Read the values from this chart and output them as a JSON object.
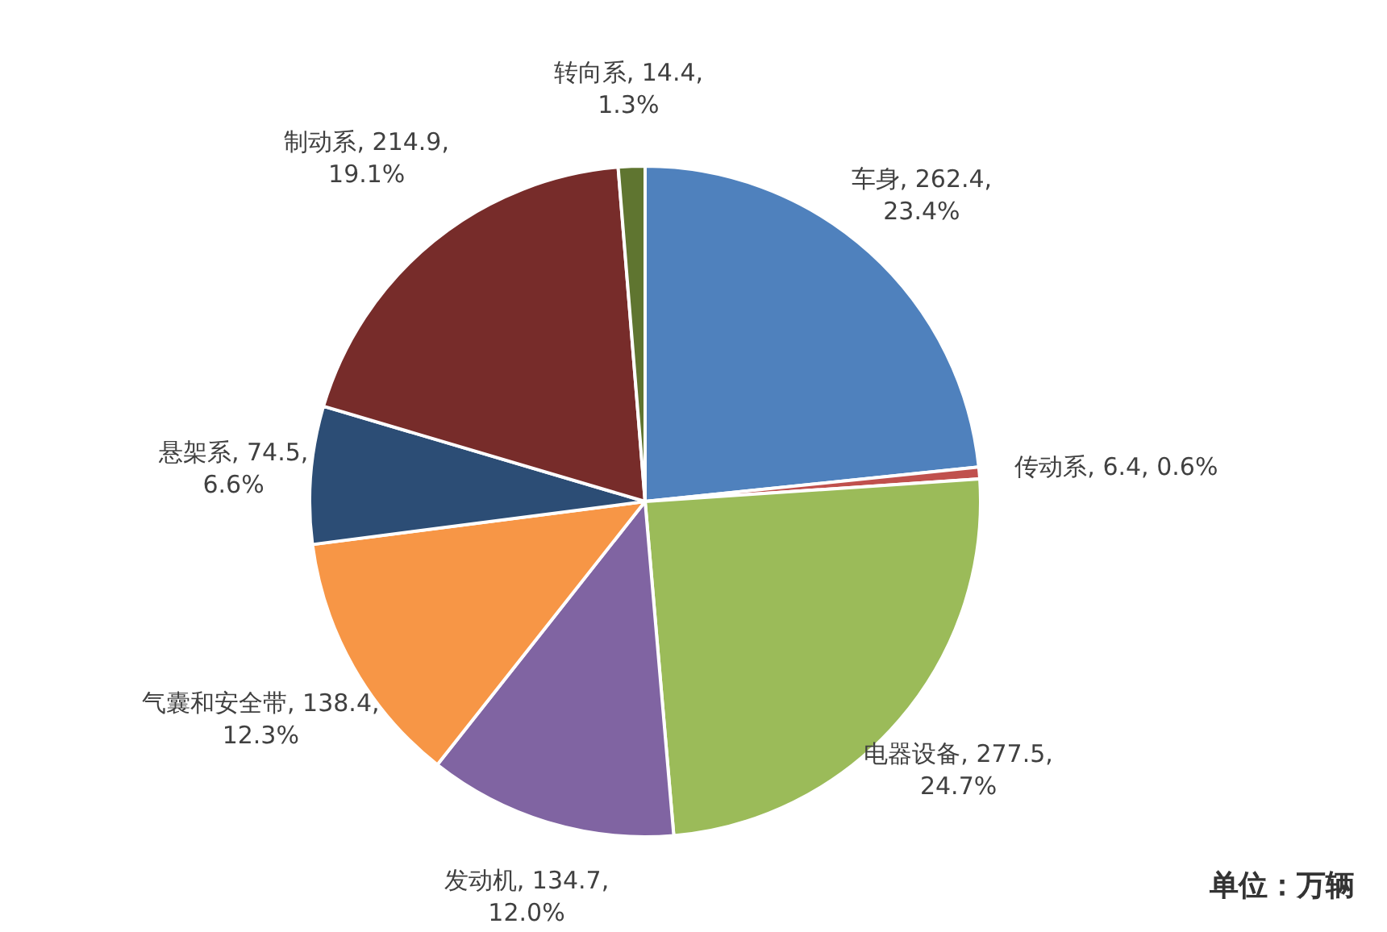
{
  "chart_data": {
    "type": "pie",
    "categories": [
      "车身",
      "传动系",
      "电器设备",
      "发动机",
      "气囊和安全带",
      "悬架系",
      "制动系",
      "转向系"
    ],
    "values": [
      262.4,
      6.4,
      277.5,
      134.7,
      138.4,
      74.5,
      214.9,
      14.4
    ],
    "colors": [
      "#4f81bd",
      "#c0504d",
      "#9bbb59",
      "#8064a2",
      "#f79646",
      "#2c4d75",
      "#772c2a",
      "#5f7530"
    ],
    "value_labels": [
      "262.4, 23.4%",
      "6.4, 0.6%",
      "277.5, 24.7%",
      "134.7, 12.0%",
      "138.4, 12.3%",
      "74.5, 6.6%",
      "214.9, 19.1%",
      "14.4, 1.3%"
    ],
    "annotations": [
      "单位：万辆"
    ]
  }
}
